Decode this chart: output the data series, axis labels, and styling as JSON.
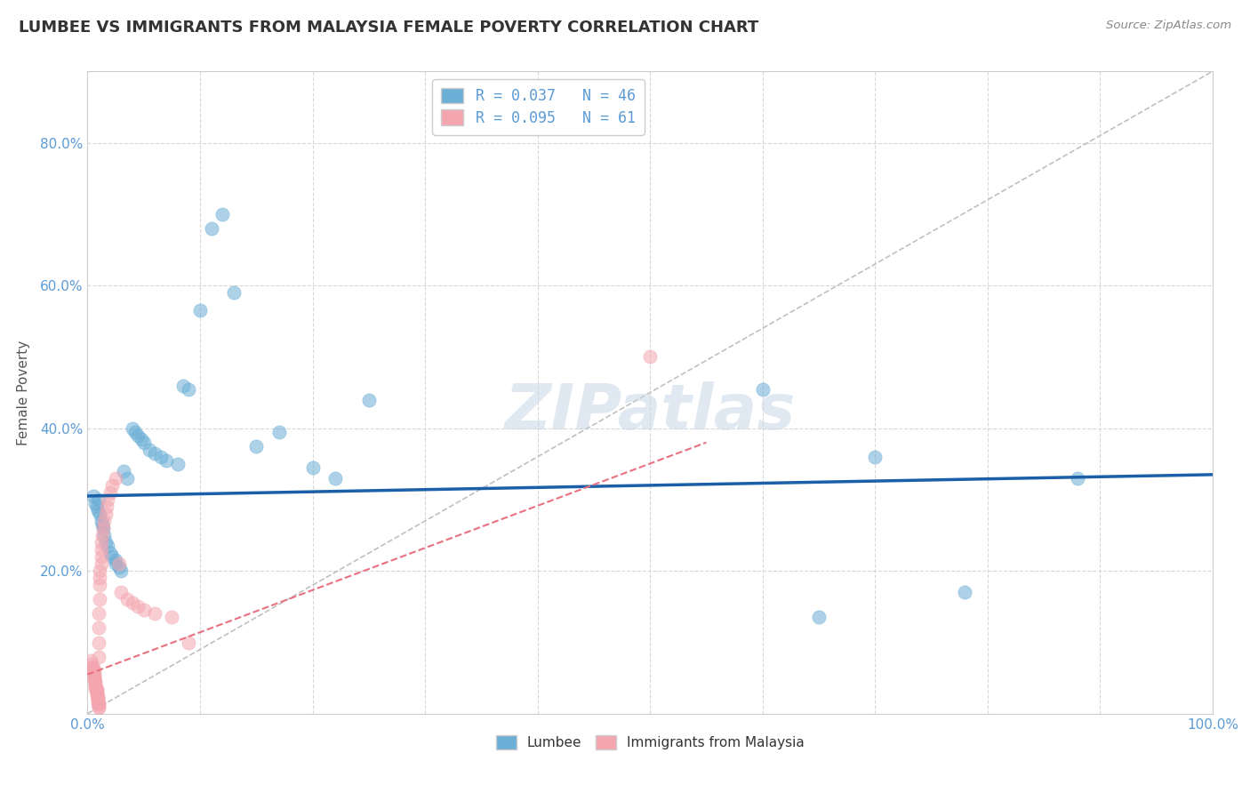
{
  "title": "LUMBEE VS IMMIGRANTS FROM MALAYSIA FEMALE POVERTY CORRELATION CHART",
  "source": "Source: ZipAtlas.com",
  "ylabel": "Female Poverty",
  "xlim": [
    0,
    1.0
  ],
  "ylim": [
    0,
    0.9
  ],
  "background_color": "#ffffff",
  "watermark": "ZIPatlas",
  "lumbee_color": "#6baed6",
  "malaysia_color": "#f4a6b0",
  "lumbee_R": 0.037,
  "lumbee_N": 46,
  "malaysia_R": 0.095,
  "malaysia_N": 61,
  "lumbee_x": [
    0.005,
    0.007,
    0.008,
    0.009,
    0.01,
    0.011,
    0.012,
    0.013,
    0.014,
    0.015,
    0.016,
    0.018,
    0.02,
    0.022,
    0.025,
    0.025,
    0.028,
    0.03,
    0.032,
    0.035,
    0.04,
    0.042,
    0.045,
    0.048,
    0.05,
    0.055,
    0.06,
    0.065,
    0.07,
    0.08,
    0.085,
    0.09,
    0.1,
    0.11,
    0.12,
    0.13,
    0.15,
    0.17,
    0.2,
    0.22,
    0.25,
    0.6,
    0.65,
    0.7,
    0.78,
    0.88
  ],
  "lumbee_y": [
    0.305,
    0.295,
    0.29,
    0.285,
    0.3,
    0.28,
    0.27,
    0.265,
    0.26,
    0.25,
    0.24,
    0.235,
    0.225,
    0.22,
    0.215,
    0.21,
    0.205,
    0.2,
    0.34,
    0.33,
    0.4,
    0.395,
    0.39,
    0.385,
    0.38,
    0.37,
    0.365,
    0.36,
    0.355,
    0.35,
    0.46,
    0.455,
    0.565,
    0.68,
    0.7,
    0.59,
    0.375,
    0.395,
    0.345,
    0.33,
    0.44,
    0.455,
    0.135,
    0.36,
    0.17,
    0.33
  ],
  "malaysia_x": [
    0.003,
    0.004,
    0.004,
    0.005,
    0.005,
    0.005,
    0.006,
    0.006,
    0.006,
    0.006,
    0.006,
    0.007,
    0.007,
    0.007,
    0.007,
    0.007,
    0.008,
    0.008,
    0.008,
    0.008,
    0.008,
    0.009,
    0.009,
    0.009,
    0.009,
    0.009,
    0.01,
    0.01,
    0.01,
    0.01,
    0.01,
    0.01,
    0.01,
    0.01,
    0.011,
    0.011,
    0.011,
    0.011,
    0.012,
    0.012,
    0.012,
    0.012,
    0.013,
    0.014,
    0.015,
    0.016,
    0.017,
    0.018,
    0.02,
    0.022,
    0.025,
    0.028,
    0.03,
    0.035,
    0.04,
    0.045,
    0.05,
    0.06,
    0.075,
    0.09,
    0.5
  ],
  "malaysia_y": [
    0.075,
    0.07,
    0.065,
    0.065,
    0.062,
    0.06,
    0.058,
    0.055,
    0.052,
    0.05,
    0.048,
    0.045,
    0.043,
    0.04,
    0.038,
    0.035,
    0.035,
    0.033,
    0.03,
    0.028,
    0.025,
    0.025,
    0.022,
    0.02,
    0.018,
    0.015,
    0.015,
    0.013,
    0.01,
    0.008,
    0.08,
    0.1,
    0.12,
    0.14,
    0.16,
    0.18,
    0.19,
    0.2,
    0.21,
    0.22,
    0.23,
    0.24,
    0.25,
    0.26,
    0.27,
    0.28,
    0.29,
    0.3,
    0.31,
    0.32,
    0.33,
    0.21,
    0.17,
    0.16,
    0.155,
    0.15,
    0.145,
    0.14,
    0.135,
    0.1,
    0.5
  ],
  "grid_color": "#d8d8d8",
  "trendline_lumbee_color": "#1a5fa8",
  "trendline_malaysia_color": "#e87080",
  "diagonal_color": "#c0c0c0"
}
